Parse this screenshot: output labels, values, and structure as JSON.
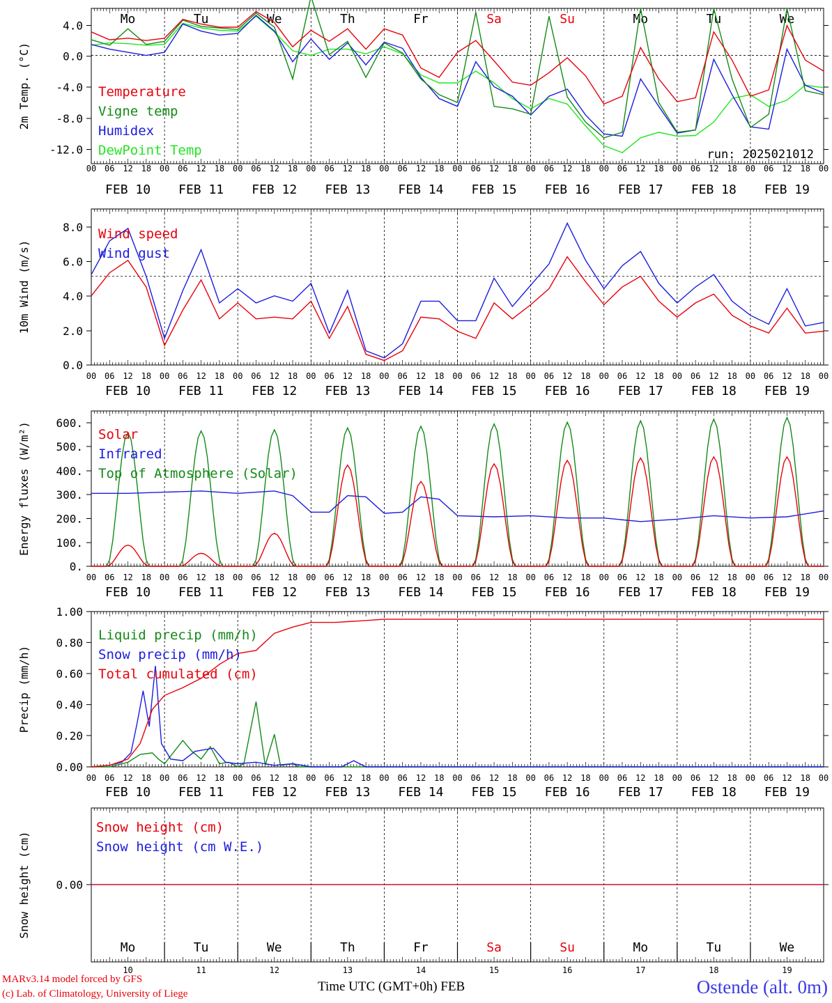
{
  "run_label": "run: 2025021012",
  "time_axis": {
    "days": [
      "FEB 10",
      "FEB 11",
      "FEB 12",
      "FEB 13",
      "FEB 14",
      "FEB 15",
      "FEB 16",
      "FEB 17",
      "FEB 18",
      "FEB 19"
    ],
    "weekdays": [
      {
        "label": "Mo",
        "color": "#000000"
      },
      {
        "label": "Tu",
        "color": "#000000"
      },
      {
        "label": "We",
        "color": "#000000"
      },
      {
        "label": "Th",
        "color": "#000000"
      },
      {
        "label": "Fr",
        "color": "#000000"
      },
      {
        "label": "Sa",
        "color": "#e8000b"
      },
      {
        "label": "Su",
        "color": "#e8000b"
      },
      {
        "label": "Mo",
        "color": "#000000"
      },
      {
        "label": "Tu",
        "color": "#000000"
      },
      {
        "label": "We",
        "color": "#000000"
      }
    ],
    "day_numbers": [
      "10",
      "11",
      "12",
      "13",
      "14",
      "15",
      "16",
      "17",
      "18",
      "19"
    ],
    "hour_ticks": [
      "00",
      "06",
      "12",
      "18"
    ],
    "final_tick": "00"
  },
  "colors": {
    "red": "#e8000b",
    "green": "#138a17",
    "blue": "#1c1ce0",
    "light_green": "#22e622",
    "grid": "#000000"
  },
  "footer": {
    "model_line": "MARv3.14 model forced by GFS",
    "lab_line": "(c) Lab. of Climatology, University of Liege",
    "axis_title": "Time UTC (GMT+0h)",
    "month": "FEB",
    "station": "Ostende (alt. 0m)"
  },
  "chart_data": [
    {
      "type": "line",
      "ylabel": "2m Temp. (°C)",
      "yticks": [
        "4.0",
        "0.0",
        "-4.0",
        "-8.0",
        "-12.0"
      ],
      "ylim": [
        -13.8,
        6.0
      ],
      "x_hours": [
        0,
        6,
        12,
        18,
        24,
        30,
        36,
        42,
        48,
        54,
        60,
        66,
        72,
        78,
        84,
        90,
        96,
        102,
        108,
        114,
        120,
        126,
        132,
        138,
        144,
        150,
        156,
        162,
        168,
        174,
        180,
        186,
        192,
        198,
        204,
        210,
        216,
        222,
        228,
        234,
        240
      ],
      "series": [
        {
          "name": "Temperature",
          "color": "#e8000b",
          "values": [
            3.0,
            2.0,
            2.2,
            1.9,
            2.2,
            4.6,
            4.0,
            3.6,
            3.6,
            5.6,
            4.2,
            1.1,
            3.2,
            1.8,
            3.4,
            0.8,
            3.4,
            2.6,
            -1.6,
            -2.8,
            0.4,
            1.9,
            -0.7,
            -3.4,
            -3.8,
            -2.2,
            -0.3,
            -2.6,
            -6.2,
            -5.2,
            1.0,
            -3.0,
            -5.9,
            -5.4,
            3.0,
            -0.6,
            -5.2,
            -4.4,
            3.8,
            -0.6,
            -2.0
          ]
        },
        {
          "name": "Vigne temp",
          "color": "#138a17",
          "values": [
            2.0,
            1.3,
            3.4,
            1.4,
            1.8,
            4.5,
            3.7,
            3.5,
            3.3,
            5.4,
            3.6,
            -3.0,
            7.5,
            0.1,
            1.8,
            -2.8,
            1.6,
            0.3,
            -3.0,
            -5.0,
            -6.0,
            5.5,
            -6.5,
            -6.8,
            -7.5,
            5.0,
            -5.3,
            -8.5,
            -10.5,
            -9.8,
            6.0,
            -6.0,
            -9.8,
            -9.5,
            6.0,
            -3.0,
            -9.2,
            -7.5,
            6.0,
            -4.5,
            -5.0
          ]
        },
        {
          "name": "Humidex",
          "color": "#1c1ce0",
          "values": [
            1.4,
            0.8,
            0.4,
            0.0,
            0.4,
            4.0,
            3.1,
            2.6,
            2.8,
            5.1,
            3.1,
            -0.8,
            2.1,
            -0.5,
            1.6,
            -1.2,
            1.7,
            0.9,
            -2.8,
            -5.5,
            -6.5,
            -0.8,
            -4.0,
            -5.2,
            -7.6,
            -5.2,
            -4.3,
            -7.6,
            -10.0,
            -10.3,
            -3.0,
            -6.5,
            -9.9,
            -9.5,
            -0.5,
            -5.0,
            -9.1,
            -9.4,
            0.8,
            -3.8,
            -4.8
          ]
        },
        {
          "name": "DewPoint Temp",
          "color": "#22e622",
          "values": [
            1.3,
            1.6,
            1.5,
            1.3,
            1.4,
            4.1,
            3.5,
            3.2,
            3.1,
            5.0,
            3.0,
            0.6,
            0.0,
            0.8,
            0.8,
            0.2,
            1.1,
            0.2,
            -2.5,
            -3.5,
            -3.5,
            -2.0,
            -3.5,
            -5.5,
            -6.8,
            -5.5,
            -6.2,
            -9.0,
            -11.5,
            -12.4,
            -10.5,
            -9.8,
            -10.3,
            -10.2,
            -8.5,
            -5.5,
            -5.0,
            -6.5,
            -5.7,
            -3.8,
            -4.1
          ]
        }
      ]
    },
    {
      "type": "line",
      "ylabel": "10m Wind (m/s)",
      "yticks": [
        "8.0",
        "6.0",
        "4.0",
        "2.0",
        "0.0"
      ],
      "ylim": [
        0,
        8.8
      ],
      "x_hours": [
        0,
        6,
        12,
        18,
        24,
        30,
        36,
        42,
        48,
        54,
        60,
        66,
        72,
        78,
        84,
        90,
        96,
        102,
        108,
        114,
        120,
        126,
        132,
        138,
        144,
        150,
        156,
        162,
        168,
        174,
        180,
        186,
        192,
        198,
        204,
        210,
        216,
        222,
        228,
        234,
        240
      ],
      "series": [
        {
          "name": "Wind speed",
          "color": "#e8000b",
          "values": [
            3.9,
            5.2,
            5.9,
            4.4,
            1.1,
            3.1,
            4.8,
            2.6,
            3.5,
            2.6,
            2.7,
            2.6,
            3.6,
            1.5,
            3.3,
            0.6,
            0.25,
            0.8,
            2.7,
            2.6,
            1.9,
            1.5,
            3.5,
            2.6,
            3.4,
            4.3,
            6.1,
            4.7,
            3.4,
            4.4,
            5.0,
            3.6,
            2.7,
            3.5,
            4.0,
            2.8,
            2.2,
            1.8,
            3.2,
            1.8,
            1.9
          ]
        },
        {
          "name": "Wind gust",
          "color": "#1c1ce0",
          "values": [
            5.1,
            7.0,
            7.7,
            5.0,
            1.5,
            4.2,
            6.5,
            3.5,
            4.3,
            3.5,
            3.9,
            3.6,
            4.6,
            1.8,
            4.2,
            0.8,
            0.4,
            1.2,
            3.6,
            3.6,
            2.5,
            2.5,
            4.9,
            3.3,
            4.5,
            5.7,
            8.0,
            5.9,
            4.3,
            5.6,
            6.4,
            4.6,
            3.5,
            4.4,
            5.1,
            3.6,
            2.8,
            2.3,
            4.3,
            2.2,
            2.4
          ]
        }
      ],
      "reference_line": 5.0
    },
    {
      "type": "line",
      "ylabel": "Energy fluxes (W/m²)",
      "yticks": [
        "600.",
        "500.",
        "400.",
        "300.",
        "200.",
        "100.",
        "0."
      ],
      "ylim": [
        0,
        660
      ],
      "series": [
        {
          "name": "Solar",
          "color": "#e8000b",
          "peaks": [
            90,
            55,
            140,
            430,
            360,
            435,
            450,
            460,
            465,
            465
          ]
        },
        {
          "name": "Infrared",
          "color": "#1c1ce0",
          "x_hours": [
            0,
            12,
            24,
            36,
            48,
            60,
            66,
            72,
            78,
            84,
            90,
            96,
            102,
            108,
            114,
            120,
            132,
            144,
            156,
            168,
            180,
            192,
            204,
            216,
            228,
            240
          ],
          "values": [
            310,
            310,
            315,
            320,
            310,
            320,
            300,
            230,
            230,
            300,
            295,
            225,
            230,
            295,
            285,
            215,
            210,
            215,
            205,
            205,
            190,
            200,
            215,
            205,
            210,
            235
          ]
        },
        {
          "name": "Top of Atmosphere (Solar)",
          "color": "#138a17",
          "peaks": [
            568,
            575,
            580,
            588,
            595,
            605,
            612,
            618,
            625,
            632
          ]
        }
      ]
    },
    {
      "type": "line",
      "ylabel": "Precip (mm/h)",
      "yticks": [
        "1.00",
        "0.80",
        "0.60",
        "0.40",
        "0.20",
        "0.00"
      ],
      "ylim": [
        0,
        1.0
      ],
      "series": [
        {
          "name": "Liquid precip (mm/h)",
          "color": "#138a17",
          "x_hours": [
            0,
            6,
            12,
            16,
            20,
            22,
            24,
            30,
            33,
            36,
            39,
            42,
            45,
            48,
            50,
            54,
            57,
            60,
            62,
            66,
            68,
            72,
            78,
            84,
            90,
            96,
            240
          ],
          "values": [
            0.0,
            0.0,
            0.03,
            0.08,
            0.09,
            0.05,
            0.02,
            0.17,
            0.1,
            0.05,
            0.13,
            0.02,
            0.03,
            0.0,
            0.02,
            0.42,
            0.01,
            0.21,
            0.01,
            0.02,
            0.0,
            0.0,
            0.0,
            0.0,
            0.0,
            0.0,
            0.0
          ]
        },
        {
          "name": "Snow precip (mm/h)",
          "color": "#1c1ce0",
          "x_hours": [
            0,
            6,
            10,
            13,
            15,
            17,
            19,
            21,
            23,
            26,
            30,
            34,
            40,
            44,
            48,
            54,
            60,
            66,
            72,
            82,
            86,
            90,
            96,
            240
          ],
          "values": [
            0.0,
            0.01,
            0.03,
            0.09,
            0.28,
            0.49,
            0.26,
            0.65,
            0.15,
            0.05,
            0.04,
            0.1,
            0.12,
            0.03,
            0.02,
            0.03,
            0.01,
            0.02,
            0.0,
            0.0,
            0.04,
            0.0,
            0.0,
            0.0
          ]
        },
        {
          "name": "Total cumulated (cm)",
          "color": "#e8000b",
          "x_hours": [
            0,
            6,
            12,
            16,
            20,
            24,
            30,
            36,
            42,
            48,
            54,
            60,
            66,
            72,
            80,
            88,
            96,
            240
          ],
          "values": [
            0.0,
            0.01,
            0.05,
            0.15,
            0.37,
            0.46,
            0.51,
            0.57,
            0.66,
            0.73,
            0.75,
            0.86,
            0.9,
            0.93,
            0.93,
            0.94,
            0.95,
            0.95
          ]
        }
      ]
    },
    {
      "type": "line",
      "ylabel": "Snow height (cm)",
      "yticks": [
        "0.00"
      ],
      "ylim": [
        -1,
        1
      ],
      "series": [
        {
          "name": "Snow height (cm)",
          "color": "#e8000b",
          "x_hours": [
            0,
            240
          ],
          "values": [
            0.0,
            0.0
          ]
        },
        {
          "name": "Snow height (cm W.E.)",
          "color": "#1c1ce0",
          "x_hours": [
            0,
            240
          ],
          "values": [
            0.0,
            0.0
          ]
        }
      ]
    }
  ]
}
